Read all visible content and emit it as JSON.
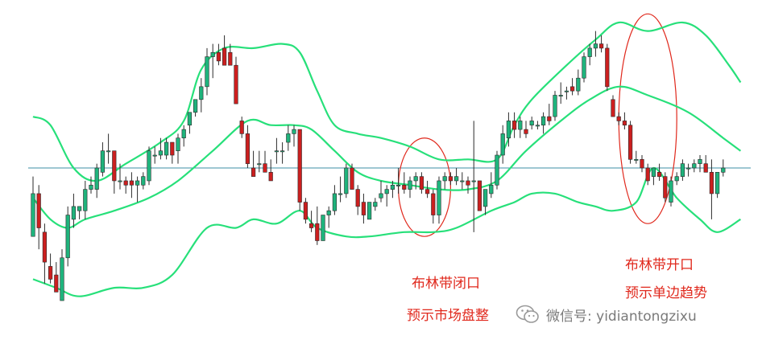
{
  "chart_data": {
    "type": "candlestick",
    "title": "",
    "xlabel": "",
    "ylabel": "",
    "grid": false,
    "ylim": [
      66,
      137
    ],
    "reference_line": 100,
    "colors": {
      "up": "#1fb37c",
      "down": "#cc1f1f",
      "bands": "#27e07a",
      "reference": "#3d8fa6",
      "annotation": "#e0281c"
    },
    "candles": [
      {
        "o": 84,
        "h": 98,
        "l": 84,
        "c": 94
      },
      {
        "o": 94,
        "h": 96,
        "l": 81,
        "c": 86
      },
      {
        "o": 85,
        "h": 87,
        "l": 73,
        "c": 78
      },
      {
        "o": 77,
        "h": 80,
        "l": 73,
        "c": 74
      },
      {
        "o": 75,
        "h": 78,
        "l": 71,
        "c": 71
      },
      {
        "o": 69,
        "h": 81,
        "l": 69,
        "c": 79
      },
      {
        "o": 79,
        "h": 91,
        "l": 77,
        "c": 89
      },
      {
        "o": 88,
        "h": 94,
        "l": 86,
        "c": 91
      },
      {
        "o": 90,
        "h": 91,
        "l": 88,
        "c": 91
      },
      {
        "o": 90,
        "h": 97,
        "l": 88,
        "c": 95
      },
      {
        "o": 95,
        "h": 98,
        "l": 94,
        "c": 96
      },
      {
        "o": 95,
        "h": 101,
        "l": 93,
        "c": 100
      },
      {
        "o": 99,
        "h": 106,
        "l": 98,
        "c": 104
      },
      {
        "o": 104,
        "h": 108,
        "l": 101,
        "c": 104
      },
      {
        "o": 104,
        "h": 104,
        "l": 94,
        "c": 97
      },
      {
        "o": 97,
        "h": 101,
        "l": 95,
        "c": 97
      },
      {
        "o": 97,
        "h": 98,
        "l": 94,
        "c": 96
      },
      {
        "o": 97,
        "h": 99,
        "l": 93,
        "c": 96
      },
      {
        "o": 96,
        "h": 98,
        "l": 92,
        "c": 97
      },
      {
        "o": 96,
        "h": 99,
        "l": 95,
        "c": 98
      },
      {
        "o": 97,
        "h": 105,
        "l": 96,
        "c": 104
      },
      {
        "o": 103,
        "h": 105,
        "l": 101,
        "c": 103
      },
      {
        "o": 103,
        "h": 107,
        "l": 102,
        "c": 104
      },
      {
        "o": 103,
        "h": 107,
        "l": 102,
        "c": 106
      },
      {
        "o": 106,
        "h": 106,
        "l": 101,
        "c": 103
      },
      {
        "o": 104,
        "h": 108,
        "l": 101,
        "c": 107
      },
      {
        "o": 107,
        "h": 110,
        "l": 105,
        "c": 109
      },
      {
        "o": 110,
        "h": 113,
        "l": 108,
        "c": 113
      },
      {
        "o": 113,
        "h": 116,
        "l": 112,
        "c": 116
      },
      {
        "o": 116,
        "h": 121,
        "l": 113,
        "c": 119
      },
      {
        "o": 119,
        "h": 128,
        "l": 117,
        "c": 126
      },
      {
        "o": 126,
        "h": 129,
        "l": 121,
        "c": 127
      },
      {
        "o": 127,
        "h": 129,
        "l": 124,
        "c": 125
      },
      {
        "o": 128,
        "h": 131,
        "l": 124,
        "c": 124
      },
      {
        "o": 127,
        "h": 129,
        "l": 124,
        "c": 124
      },
      {
        "o": 124,
        "h": 126,
        "l": 115,
        "c": 115
      },
      {
        "o": 111,
        "h": 112,
        "l": 107,
        "c": 108
      },
      {
        "o": 108,
        "h": 110,
        "l": 100,
        "c": 101
      },
      {
        "o": 100,
        "h": 104,
        "l": 98,
        "c": 98
      },
      {
        "o": 101,
        "h": 104,
        "l": 99,
        "c": 101
      },
      {
        "o": 101,
        "h": 104,
        "l": 99,
        "c": 99
      },
      {
        "o": 99,
        "h": 102,
        "l": 97,
        "c": 97
      },
      {
        "o": 104,
        "h": 107,
        "l": 101,
        "c": 104
      },
      {
        "o": 104,
        "h": 106,
        "l": 101,
        "c": 104
      },
      {
        "o": 106,
        "h": 110,
        "l": 104,
        "c": 108
      },
      {
        "o": 108,
        "h": 110,
        "l": 105,
        "c": 109
      },
      {
        "o": 109,
        "h": 109,
        "l": 90,
        "c": 92
      },
      {
        "o": 92,
        "h": 93,
        "l": 87,
        "c": 88
      },
      {
        "o": 87,
        "h": 90,
        "l": 85,
        "c": 86
      },
      {
        "o": 87,
        "h": 91,
        "l": 82,
        "c": 83
      },
      {
        "o": 83,
        "h": 89,
        "l": 83,
        "c": 89
      },
      {
        "o": 89,
        "h": 91,
        "l": 86,
        "c": 90
      },
      {
        "o": 90,
        "h": 96,
        "l": 89,
        "c": 94
      },
      {
        "o": 94,
        "h": 98,
        "l": 92,
        "c": 94
      },
      {
        "o": 94,
        "h": 101,
        "l": 93,
        "c": 100
      },
      {
        "o": 100,
        "h": 101,
        "l": 95,
        "c": 95
      },
      {
        "o": 95,
        "h": 96,
        "l": 89,
        "c": 91
      },
      {
        "o": 92,
        "h": 94,
        "l": 87,
        "c": 89
      },
      {
        "o": 88,
        "h": 92,
        "l": 88,
        "c": 92
      },
      {
        "o": 91,
        "h": 93,
        "l": 90,
        "c": 92
      },
      {
        "o": 93,
        "h": 97,
        "l": 92,
        "c": 94
      },
      {
        "o": 94,
        "h": 96,
        "l": 91,
        "c": 95
      },
      {
        "o": 95,
        "h": 97,
        "l": 93,
        "c": 96
      },
      {
        "o": 96,
        "h": 100,
        "l": 94,
        "c": 96
      },
      {
        "o": 96,
        "h": 99,
        "l": 94,
        "c": 95
      },
      {
        "o": 95,
        "h": 98,
        "l": 93,
        "c": 97
      },
      {
        "o": 97,
        "h": 99,
        "l": 95,
        "c": 98
      },
      {
        "o": 98,
        "h": 99,
        "l": 94,
        "c": 95
      },
      {
        "o": 95,
        "h": 97,
        "l": 93,
        "c": 94
      },
      {
        "o": 94,
        "h": 95,
        "l": 87,
        "c": 89
      },
      {
        "o": 89,
        "h": 98,
        "l": 87,
        "c": 97
      },
      {
        "o": 97,
        "h": 99,
        "l": 95,
        "c": 98
      },
      {
        "o": 98,
        "h": 99,
        "l": 96,
        "c": 97
      },
      {
        "o": 97,
        "h": 100,
        "l": 96,
        "c": 98
      },
      {
        "o": 97,
        "h": 99,
        "l": 95,
        "c": 97
      },
      {
        "o": 97,
        "h": 98,
        "l": 94,
        "c": 96
      },
      {
        "o": 97,
        "h": 111,
        "l": 85,
        "c": 97
      },
      {
        "o": 97,
        "h": 97,
        "l": 90,
        "c": 90
      },
      {
        "o": 91,
        "h": 95,
        "l": 89,
        "c": 95
      },
      {
        "o": 94,
        "h": 99,
        "l": 93,
        "c": 96
      },
      {
        "o": 96,
        "h": 104,
        "l": 95,
        "c": 103
      },
      {
        "o": 103,
        "h": 110,
        "l": 101,
        "c": 108
      },
      {
        "o": 107,
        "h": 113,
        "l": 105,
        "c": 111
      },
      {
        "o": 111,
        "h": 113,
        "l": 107,
        "c": 109
      },
      {
        "o": 109,
        "h": 112,
        "l": 107,
        "c": 111
      },
      {
        "o": 109,
        "h": 111,
        "l": 107,
        "c": 108
      },
      {
        "o": 110,
        "h": 112,
        "l": 109,
        "c": 111
      },
      {
        "o": 110,
        "h": 111,
        "l": 109,
        "c": 110
      },
      {
        "o": 110,
        "h": 113,
        "l": 108,
        "c": 112
      },
      {
        "o": 112,
        "h": 115,
        "l": 110,
        "c": 111
      },
      {
        "o": 112,
        "h": 118,
        "l": 111,
        "c": 117
      },
      {
        "o": 117,
        "h": 120,
        "l": 115,
        "c": 117
      },
      {
        "o": 118,
        "h": 119,
        "l": 116,
        "c": 118
      },
      {
        "o": 119,
        "h": 121,
        "l": 117,
        "c": 118
      },
      {
        "o": 118,
        "h": 123,
        "l": 117,
        "c": 121
      },
      {
        "o": 121,
        "h": 127,
        "l": 120,
        "c": 126
      },
      {
        "o": 126,
        "h": 129,
        "l": 124,
        "c": 128
      },
      {
        "o": 128,
        "h": 132,
        "l": 126,
        "c": 129
      },
      {
        "o": 129,
        "h": 131,
        "l": 127,
        "c": 128
      },
      {
        "o": 128,
        "h": 129,
        "l": 118,
        "c": 119
      },
      {
        "o": 116,
        "h": 117,
        "l": 112,
        "c": 112
      },
      {
        "o": 112,
        "h": 113,
        "l": 110,
        "c": 111
      },
      {
        "o": 111,
        "h": 113,
        "l": 109,
        "c": 110
      },
      {
        "o": 110,
        "h": 111,
        "l": 101,
        "c": 102
      },
      {
        "o": 102,
        "h": 104,
        "l": 101,
        "c": 102
      },
      {
        "o": 102,
        "h": 103,
        "l": 99,
        "c": 100
      },
      {
        "o": 100,
        "h": 101,
        "l": 96,
        "c": 97
      },
      {
        "o": 98,
        "h": 100,
        "l": 96,
        "c": 100
      },
      {
        "o": 99,
        "h": 101,
        "l": 97,
        "c": 98
      },
      {
        "o": 98,
        "h": 99,
        "l": 92,
        "c": 93
      },
      {
        "o": 92,
        "h": 98,
        "l": 91,
        "c": 97
      },
      {
        "o": 97,
        "h": 99,
        "l": 96,
        "c": 98
      },
      {
        "o": 98,
        "h": 102,
        "l": 97,
        "c": 101
      },
      {
        "o": 100,
        "h": 101,
        "l": 98,
        "c": 100
      },
      {
        "o": 100,
        "h": 102,
        "l": 99,
        "c": 101
      },
      {
        "o": 101,
        "h": 103,
        "l": 99,
        "c": 102
      },
      {
        "o": 101,
        "h": 103,
        "l": 99,
        "c": 99
      },
      {
        "o": 99,
        "h": 102,
        "l": 88,
        "c": 94
      },
      {
        "o": 94,
        "h": 99,
        "l": 93,
        "c": 99
      },
      {
        "o": 99,
        "h": 102,
        "l": 98,
        "c": 100
      }
    ],
    "bollinger": {
      "upper": [
        {
          "x": 0,
          "y": 112
        },
        {
          "x": 3,
          "y": 110
        },
        {
          "x": 7,
          "y": 100
        },
        {
          "x": 11,
          "y": 97
        },
        {
          "x": 16,
          "y": 101
        },
        {
          "x": 22,
          "y": 106
        },
        {
          "x": 26,
          "y": 111
        },
        {
          "x": 29,
          "y": 123
        },
        {
          "x": 33,
          "y": 128
        },
        {
          "x": 38,
          "y": 128
        },
        {
          "x": 43,
          "y": 129
        },
        {
          "x": 46,
          "y": 127
        },
        {
          "x": 49,
          "y": 118
        },
        {
          "x": 52,
          "y": 110
        },
        {
          "x": 56,
          "y": 108
        },
        {
          "x": 60,
          "y": 107
        },
        {
          "x": 65,
          "y": 105
        },
        {
          "x": 70,
          "y": 102
        },
        {
          "x": 75,
          "y": 102
        },
        {
          "x": 80,
          "y": 102
        },
        {
          "x": 83,
          "y": 110
        },
        {
          "x": 86,
          "y": 116
        },
        {
          "x": 92,
          "y": 124
        },
        {
          "x": 97,
          "y": 130
        },
        {
          "x": 101,
          "y": 134
        },
        {
          "x": 106,
          "y": 132
        },
        {
          "x": 112,
          "y": 134
        },
        {
          "x": 116,
          "y": 131
        },
        {
          "x": 120,
          "y": 124
        },
        {
          "x": 122,
          "y": 120
        }
      ],
      "middle": [
        {
          "x": 0,
          "y": 93
        },
        {
          "x": 3,
          "y": 88
        },
        {
          "x": 6,
          "y": 86
        },
        {
          "x": 9,
          "y": 88
        },
        {
          "x": 14,
          "y": 90
        },
        {
          "x": 20,
          "y": 93
        },
        {
          "x": 25,
          "y": 97
        },
        {
          "x": 31,
          "y": 104
        },
        {
          "x": 37,
          "y": 111
        },
        {
          "x": 41,
          "y": 110
        },
        {
          "x": 45,
          "y": 110
        },
        {
          "x": 48,
          "y": 109
        },
        {
          "x": 52,
          "y": 104
        },
        {
          "x": 56,
          "y": 99
        },
        {
          "x": 60,
          "y": 97
        },
        {
          "x": 65,
          "y": 96
        },
        {
          "x": 70,
          "y": 95
        },
        {
          "x": 75,
          "y": 95
        },
        {
          "x": 80,
          "y": 97
        },
        {
          "x": 85,
          "y": 104
        },
        {
          "x": 91,
          "y": 111
        },
        {
          "x": 96,
          "y": 116
        },
        {
          "x": 101,
          "y": 119
        },
        {
          "x": 106,
          "y": 117
        },
        {
          "x": 113,
          "y": 113
        },
        {
          "x": 119,
          "y": 107
        },
        {
          "x": 122,
          "y": 104
        }
      ],
      "lower": [
        {
          "x": 0,
          "y": 74
        },
        {
          "x": 4,
          "y": 72
        },
        {
          "x": 8,
          "y": 70
        },
        {
          "x": 14,
          "y": 72
        },
        {
          "x": 19,
          "y": 72
        },
        {
          "x": 24,
          "y": 75
        },
        {
          "x": 30,
          "y": 86
        },
        {
          "x": 35,
          "y": 86
        },
        {
          "x": 38,
          "y": 88
        },
        {
          "x": 42,
          "y": 87
        },
        {
          "x": 46,
          "y": 90
        },
        {
          "x": 49,
          "y": 86
        },
        {
          "x": 54,
          "y": 84
        },
        {
          "x": 58,
          "y": 84
        },
        {
          "x": 64,
          "y": 85
        },
        {
          "x": 69,
          "y": 85
        },
        {
          "x": 73,
          "y": 86
        },
        {
          "x": 79,
          "y": 90
        },
        {
          "x": 83,
          "y": 92
        },
        {
          "x": 86,
          "y": 94
        },
        {
          "x": 90,
          "y": 94
        },
        {
          "x": 94,
          "y": 92
        },
        {
          "x": 97,
          "y": 91
        },
        {
          "x": 100,
          "y": 90
        },
        {
          "x": 104,
          "y": 92
        },
        {
          "x": 107,
          "y": 100
        },
        {
          "x": 111,
          "y": 93
        },
        {
          "x": 115,
          "y": 88
        },
        {
          "x": 118,
          "y": 85
        },
        {
          "x": 122,
          "y": 88
        }
      ]
    },
    "annotations": [
      {
        "text": "布林带闭口",
        "id": "closing"
      },
      {
        "text": "预示市场盘整",
        "id": "closing2"
      },
      {
        "text": "布林带开口",
        "id": "opening"
      },
      {
        "text": "预示单边趋势",
        "id": "opening2"
      }
    ],
    "highlight_ellipses": [
      {
        "label": "squeeze",
        "x_from": 63,
        "x_to": 72,
        "y_from": 84,
        "y_to": 107
      },
      {
        "label": "expansion",
        "x_from": 101,
        "x_to": 111,
        "y_from": 87,
        "y_to": 136
      }
    ]
  },
  "watermark": {
    "icon": "wechat-icon",
    "text": "微信号: yidiantongzixu"
  }
}
